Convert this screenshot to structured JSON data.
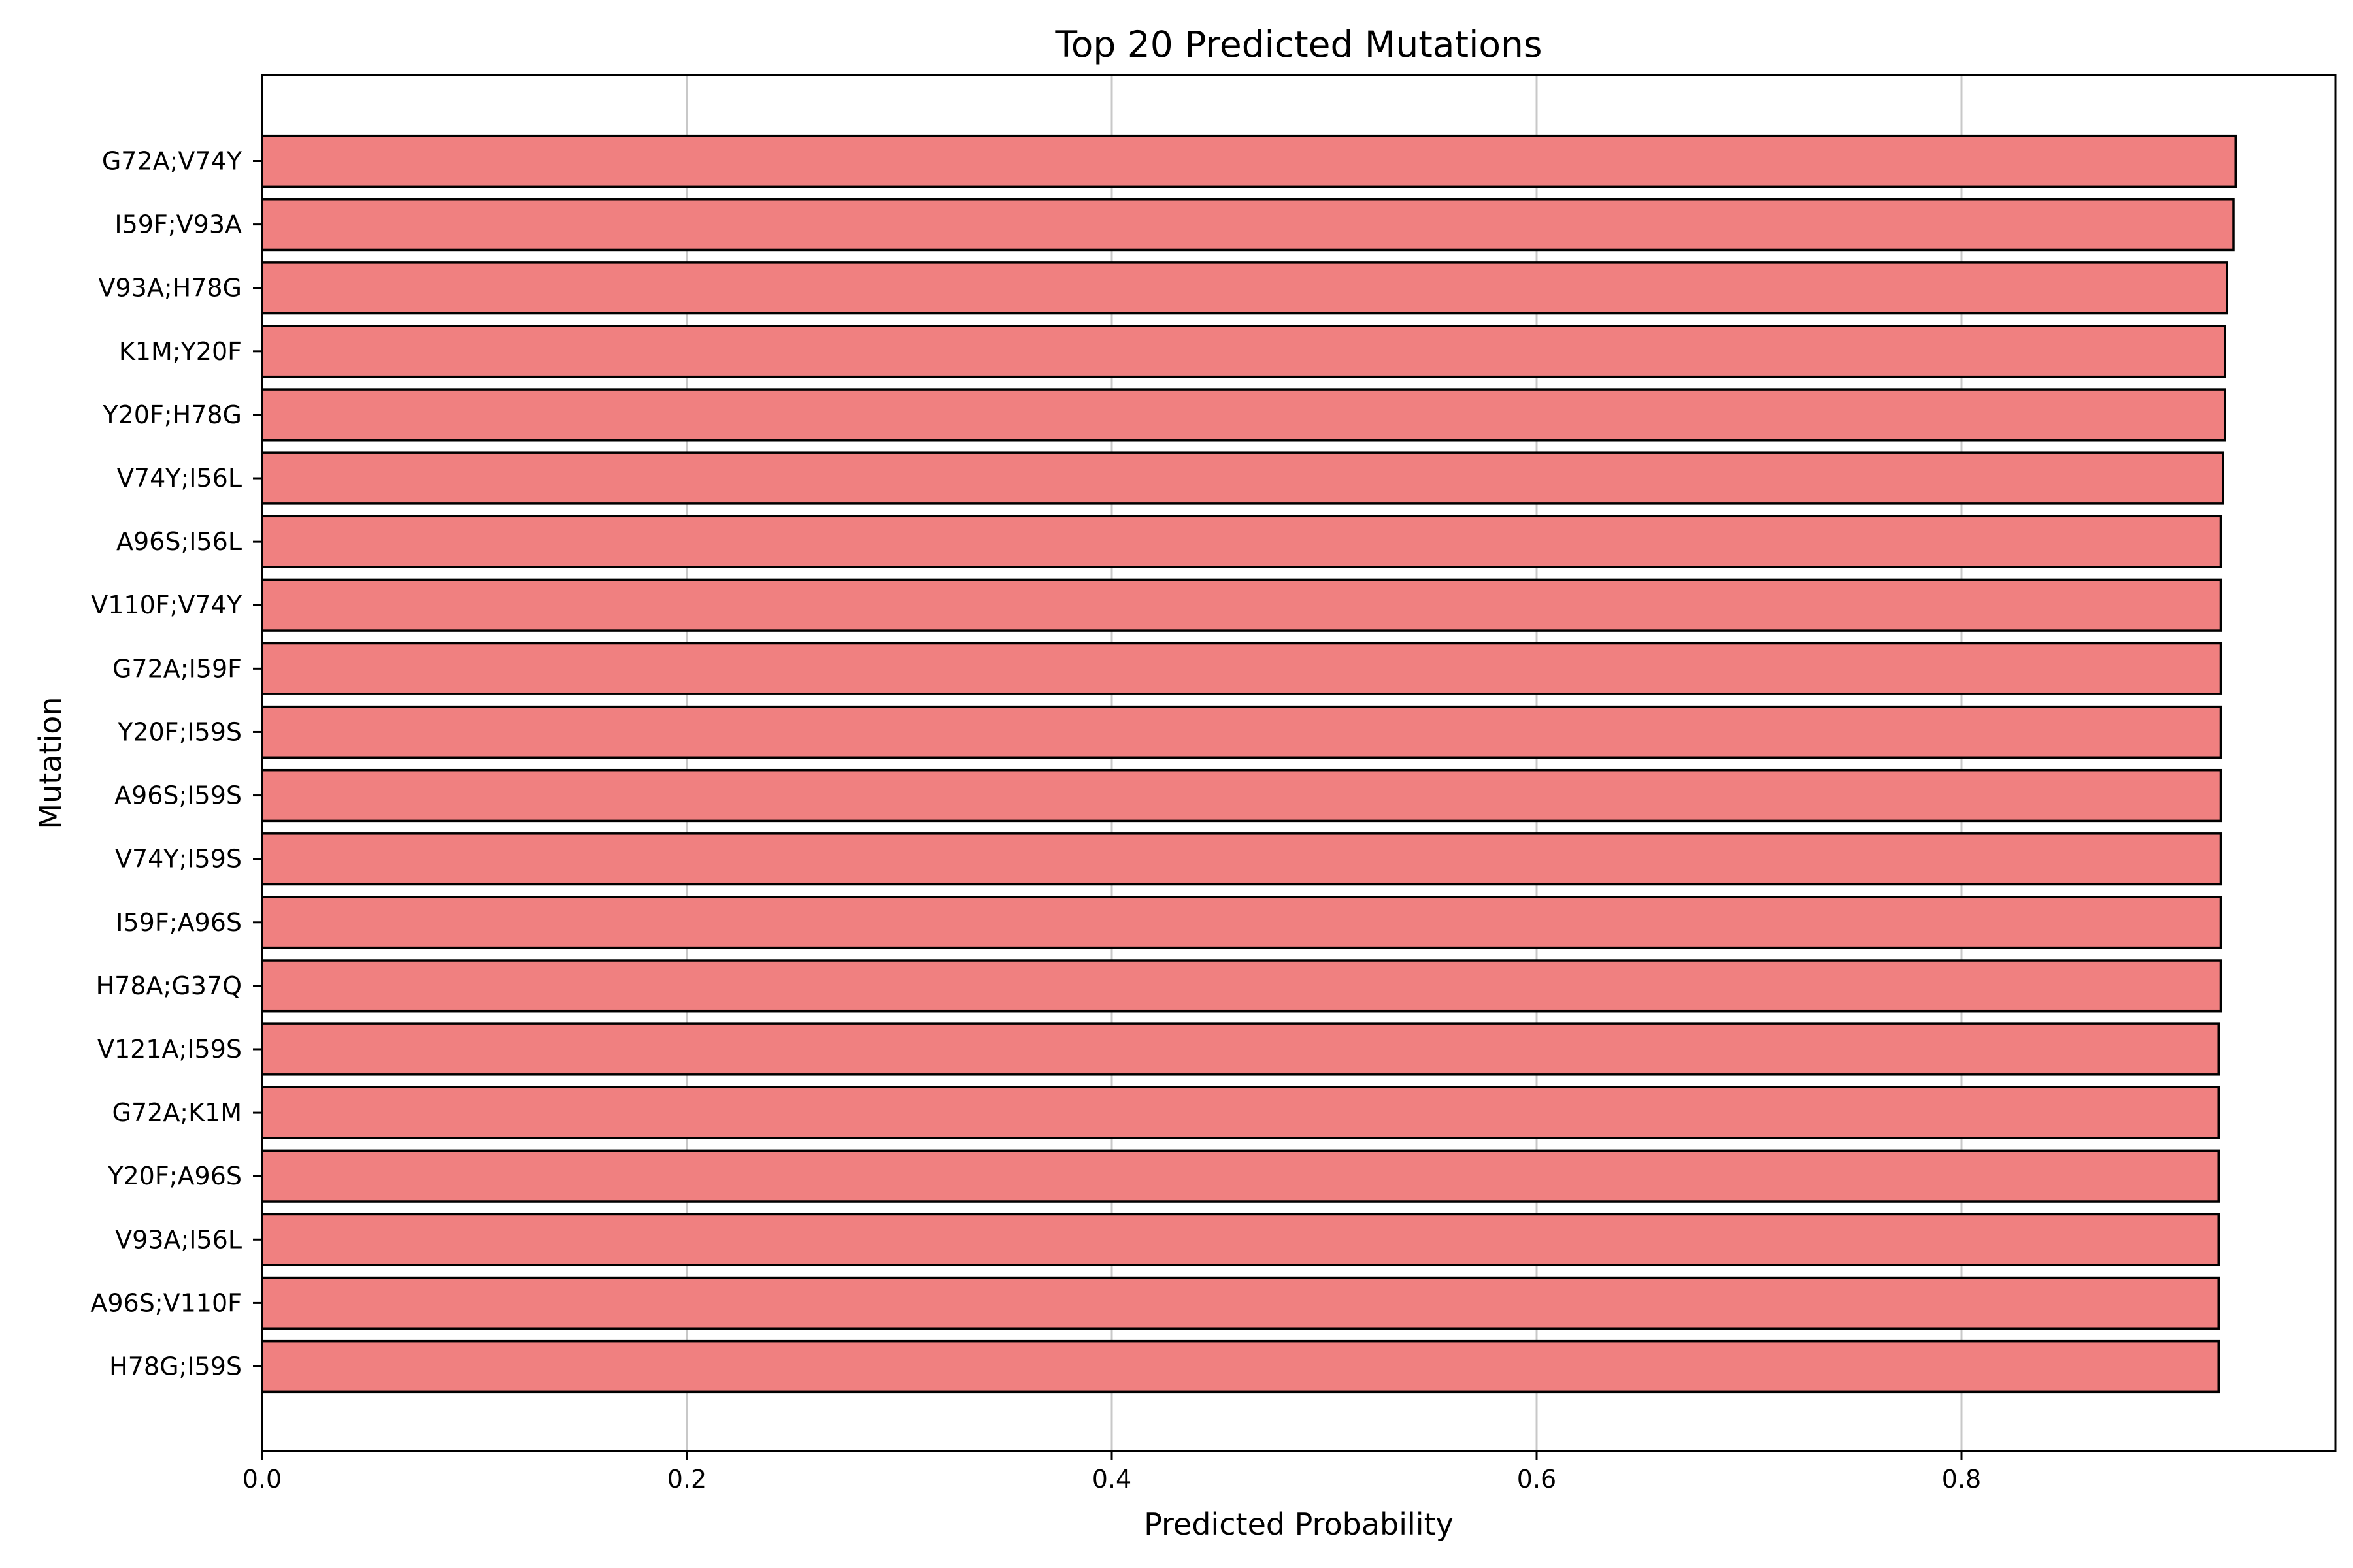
{
  "chart_data": {
    "type": "bar",
    "orientation": "horizontal",
    "title": "Top 20 Predicted Mutations",
    "xlabel": "Predicted Probability",
    "ylabel": "Mutation",
    "xlim": [
      0.0,
      0.976
    ],
    "xticks": [
      0.0,
      0.2,
      0.4,
      0.6,
      0.8
    ],
    "xtick_labels": [
      "0.0",
      "0.2",
      "0.4",
      "0.6",
      "0.8"
    ],
    "grid": "vertical",
    "bar_color": "#f08080",
    "bar_edge_color": "#000000",
    "categories": [
      "G72A;V74Y",
      "I59F;V93A",
      "V93A;H78G",
      "K1M;Y20F",
      "Y20F;H78G",
      "V74Y;I56L",
      "A96S;I56L",
      "V110F;V74Y",
      "G72A;I59F",
      "Y20F;I59S",
      "A96S;I59S",
      "V74Y;I59S",
      "I59F;A96S",
      "H78A;G37Q",
      "V121A;I59S",
      "G72A;K1M",
      "Y20F;A96S",
      "V93A;I56L",
      "A96S;V110F",
      "H78G;I59S"
    ],
    "values": [
      0.929,
      0.928,
      0.925,
      0.924,
      0.924,
      0.923,
      0.922,
      0.922,
      0.922,
      0.922,
      0.922,
      0.922,
      0.922,
      0.922,
      0.921,
      0.921,
      0.921,
      0.921,
      0.921,
      0.921
    ]
  }
}
